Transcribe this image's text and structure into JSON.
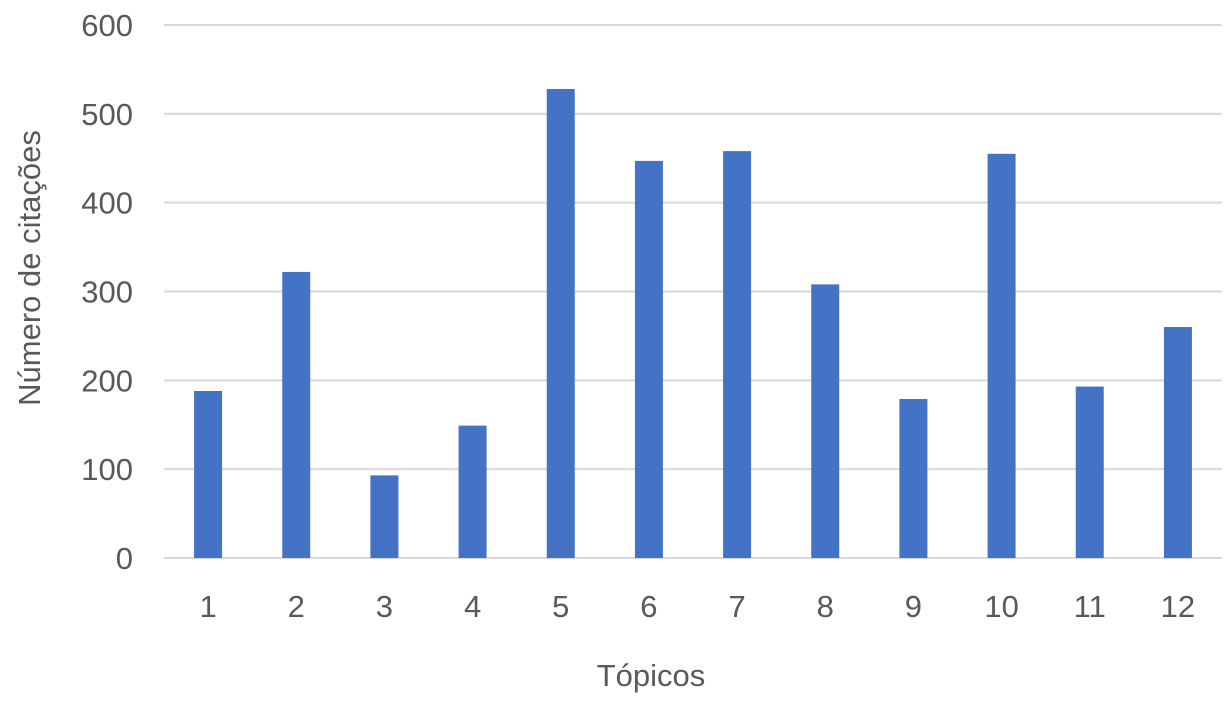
{
  "chart_data": {
    "type": "bar",
    "title": "",
    "xlabel": "Tópicos",
    "ylabel": "Número de citações",
    "categories": [
      "1",
      "2",
      "3",
      "4",
      "5",
      "6",
      "7",
      "8",
      "9",
      "10",
      "11",
      "12"
    ],
    "values": [
      188,
      322,
      93,
      149,
      528,
      447,
      458,
      308,
      179,
      455,
      193,
      260
    ],
    "ylim": [
      0,
      600
    ],
    "yticks": [
      "0",
      "100",
      "200",
      "300",
      "400",
      "500",
      "600"
    ],
    "grid": true,
    "legend": "none",
    "colors": {
      "bar": "#4472C4",
      "grid": "#D9D9D9",
      "text": "#595959"
    }
  }
}
